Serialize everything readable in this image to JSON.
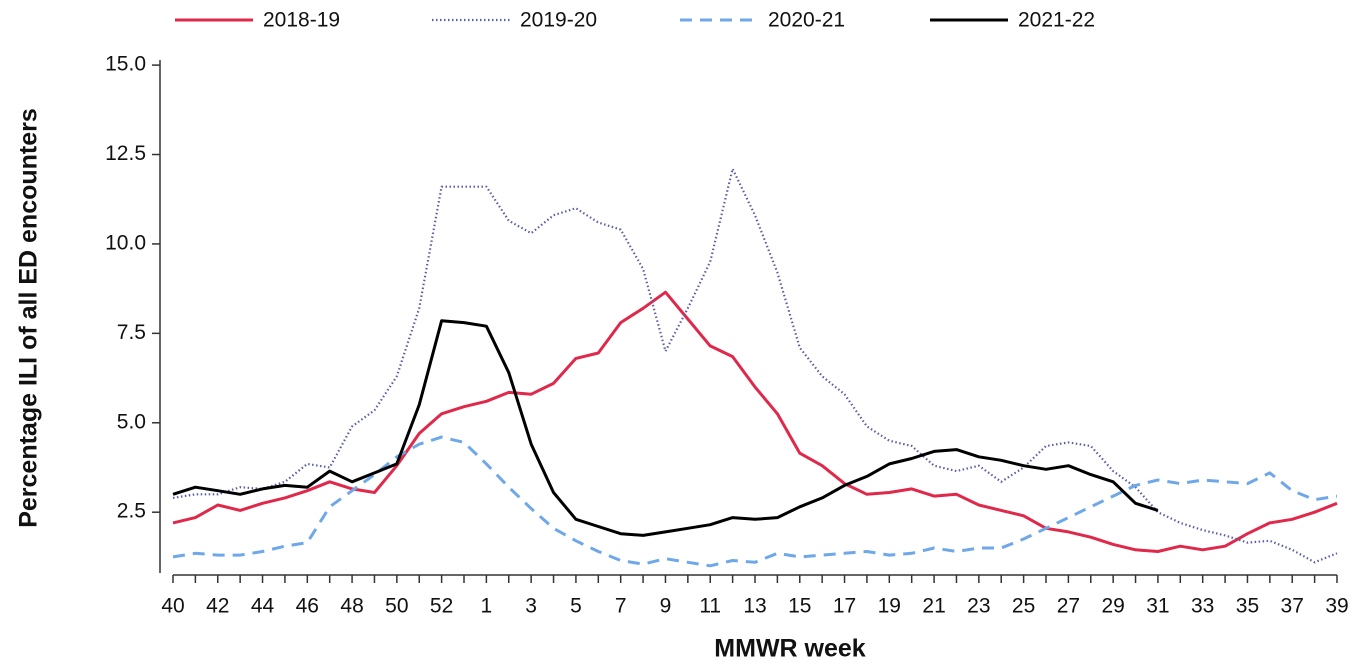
{
  "chart_data": {
    "type": "line",
    "xlabel": "MMWR week",
    "ylabel": "Percentage ILI of all ED encounters",
    "categories": [
      40,
      null,
      42,
      null,
      44,
      null,
      46,
      null,
      48,
      null,
      50,
      null,
      52,
      null,
      1,
      null,
      3,
      null,
      5,
      null,
      7,
      null,
      9,
      null,
      11,
      null,
      13,
      null,
      15,
      null,
      17,
      null,
      19,
      null,
      21,
      null,
      23,
      null,
      25,
      null,
      27,
      null,
      29,
      null,
      31,
      null,
      33,
      null,
      35,
      null,
      37,
      null,
      39
    ],
    "ylim": [
      0.8,
      15.2
    ],
    "yticks": [
      2.5,
      {
        "value": 5,
        "label": "5.0"
      },
      7.5,
      {
        "value": 10,
        "label": "10.0"
      },
      12.5,
      {
        "value": 15,
        "label": "15.0"
      }
    ],
    "series": [
      {
        "name": "2018-19",
        "color": "#e0284a",
        "style": "solid",
        "values": [
          2.2,
          2.35,
          2.7,
          2.55,
          2.75,
          2.9,
          3.1,
          3.35,
          3.15,
          3.05,
          3.8,
          4.7,
          5.25,
          5.45,
          5.6,
          5.85,
          5.8,
          6.1,
          6.8,
          6.95,
          7.8,
          8.2,
          8.65,
          7.9,
          7.15,
          6.85,
          6.0,
          5.25,
          4.15,
          3.8,
          3.3,
          3.0,
          3.05,
          3.15,
          2.95,
          3.0,
          2.7,
          2.55,
          2.4,
          2.05,
          1.95,
          1.8,
          1.6,
          1.45,
          1.4,
          1.55,
          1.45,
          1.55,
          1.9,
          2.2,
          2.3,
          2.5,
          2.75
        ]
      },
      {
        "name": "2019-20",
        "color": "#5b5ea6",
        "style": "dotted",
        "values": [
          2.9,
          3.0,
          3.0,
          3.2,
          3.15,
          3.35,
          3.85,
          3.75,
          4.9,
          5.35,
          6.3,
          8.2,
          11.6,
          11.6,
          11.6,
          10.65,
          10.3,
          10.8,
          11.0,
          10.6,
          10.4,
          9.3,
          7.0,
          8.2,
          9.5,
          12.1,
          10.8,
          9.2,
          7.1,
          6.3,
          5.8,
          4.9,
          4.5,
          4.35,
          3.8,
          3.65,
          3.8,
          3.35,
          3.75,
          4.35,
          4.45,
          4.35,
          3.65,
          3.2,
          2.5,
          2.2,
          2.0,
          1.85,
          1.65,
          1.7,
          1.45,
          1.1,
          1.35
        ]
      },
      {
        "name": "2020-21",
        "color": "#6fa8e8",
        "style": "dashed",
        "values": [
          1.25,
          1.35,
          1.3,
          1.3,
          1.4,
          1.55,
          1.65,
          2.65,
          3.1,
          3.55,
          4.05,
          4.4,
          4.6,
          4.45,
          3.85,
          3.2,
          2.6,
          2.05,
          1.7,
          1.4,
          1.15,
          1.05,
          1.2,
          1.1,
          1.0,
          1.15,
          1.1,
          1.35,
          1.25,
          1.3,
          1.35,
          1.4,
          1.3,
          1.35,
          1.5,
          1.4,
          1.5,
          1.5,
          1.75,
          2.05,
          2.35,
          2.65,
          2.95,
          3.25,
          3.4,
          3.3,
          3.4,
          3.35,
          3.3,
          3.6,
          3.1,
          2.85,
          2.95
        ]
      },
      {
        "name": "2021-22",
        "color": "#000000",
        "style": "solid",
        "values": [
          3.0,
          3.2,
          3.1,
          3.0,
          3.15,
          3.25,
          3.2,
          3.65,
          3.35,
          3.6,
          3.85,
          5.5,
          7.85,
          7.8,
          7.7,
          6.4,
          4.4,
          3.05,
          2.3,
          2.1,
          1.9,
          1.85,
          1.95,
          2.05,
          2.15,
          2.35,
          2.3,
          2.35,
          2.65,
          2.9,
          3.25,
          3.5,
          3.85,
          4.0,
          4.2,
          4.25,
          4.05,
          3.95,
          3.8,
          3.7,
          3.8,
          3.55,
          3.35,
          2.75,
          2.55,
          null,
          null,
          null,
          null,
          null,
          null,
          null,
          null
        ]
      }
    ]
  }
}
